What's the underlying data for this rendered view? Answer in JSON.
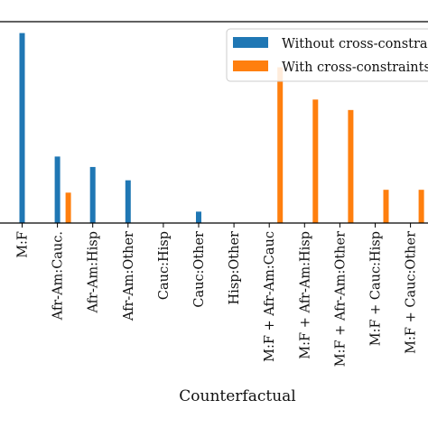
{
  "chart_data": {
    "type": "bar",
    "title": "",
    "xlabel": "Counterfactual",
    "ylabel": "",
    "categories": [
      "M:F",
      "Afr-Am:Cauc.",
      "Afr-Am:Hisp",
      "Afr-Am:Other",
      "Cauc:Hisp",
      "Cauc:Other",
      "Hisp:Other",
      "M:F + Afr-Am:Cauc",
      "M:F + Afr-Am:Hisp",
      "M:F + Afr-Am:Other",
      "M:F + Cauc:Hisp",
      "M:F + Cauc:Other"
    ],
    "series": [
      {
        "name": "Without cross-constraints",
        "color": "#1f77b4",
        "values": [
          100,
          35,
          29.5,
          22.5,
          0,
          6,
          0,
          0,
          0,
          0,
          0,
          0
        ]
      },
      {
        "name": "With cross-constraints",
        "color": "#ff7f0e",
        "values": [
          0,
          16,
          0,
          0,
          0,
          0,
          0,
          82,
          65,
          59.5,
          17.5,
          17.5
        ]
      }
    ],
    "ylim": [
      0,
      106
    ],
    "legend": "upper-right",
    "grid": false,
    "y_tick_labels_visible": false
  }
}
